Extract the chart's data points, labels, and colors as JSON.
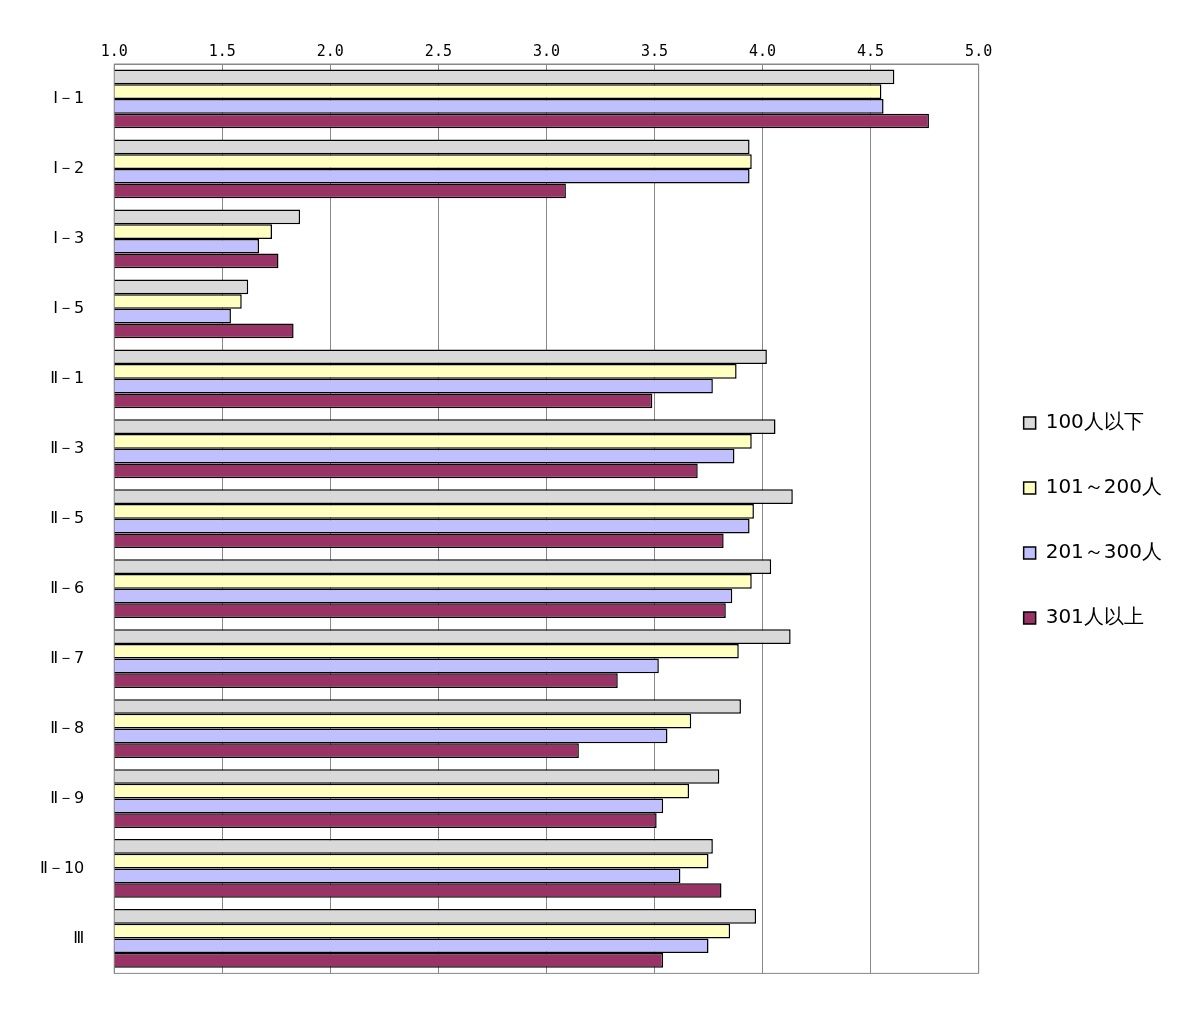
{
  "chart_data": {
    "type": "bar",
    "orientation": "horizontal",
    "categories": [
      "Ⅰ－1",
      "Ⅰ－2",
      "Ⅰ－3",
      "Ⅰ－5",
      "Ⅱ－1",
      "Ⅱ－3",
      "Ⅱ－5",
      "Ⅱ－6",
      "Ⅱ－7",
      "Ⅱ－8",
      "Ⅱ－9",
      "Ⅱ－10",
      "Ⅲ"
    ],
    "series": [
      {
        "name": "100人以下",
        "color": "#d9d9d9",
        "values": [
          4.61,
          3.94,
          1.86,
          1.62,
          4.02,
          4.06,
          4.14,
          4.04,
          4.13,
          3.9,
          3.8,
          3.77,
          3.97
        ]
      },
      {
        "name": "101～200人",
        "color": "#ffffc0",
        "values": [
          4.55,
          3.95,
          1.73,
          1.59,
          3.88,
          3.95,
          3.96,
          3.95,
          3.89,
          3.67,
          3.66,
          3.75,
          3.85
        ]
      },
      {
        "name": "201～300人",
        "color": "#c0c0ff",
        "values": [
          4.56,
          3.94,
          1.67,
          1.54,
          3.77,
          3.87,
          3.94,
          3.86,
          3.52,
          3.56,
          3.54,
          3.62,
          3.75
        ]
      },
      {
        "name": "301人以上",
        "color": "#993366",
        "values": [
          4.77,
          3.09,
          1.76,
          1.83,
          3.49,
          3.7,
          3.82,
          3.83,
          3.33,
          3.15,
          3.51,
          3.81,
          3.54
        ]
      }
    ],
    "xlim": [
      1,
      5
    ],
    "xticks": [
      {
        "value": 1,
        "label": "1.0"
      },
      {
        "value": 1.5,
        "label": "1.5"
      },
      {
        "value": 2,
        "label": "2.0"
      },
      {
        "value": 2.5,
        "label": "2.5"
      },
      {
        "value": 3,
        "label": "3.0"
      },
      {
        "value": 3.5,
        "label": "3.5"
      },
      {
        "value": 4,
        "label": "4.0"
      },
      {
        "value": 4.5,
        "label": "4.5"
      },
      {
        "value": 5,
        "label": "5.0"
      }
    ],
    "grid": "x",
    "legend": "right"
  }
}
